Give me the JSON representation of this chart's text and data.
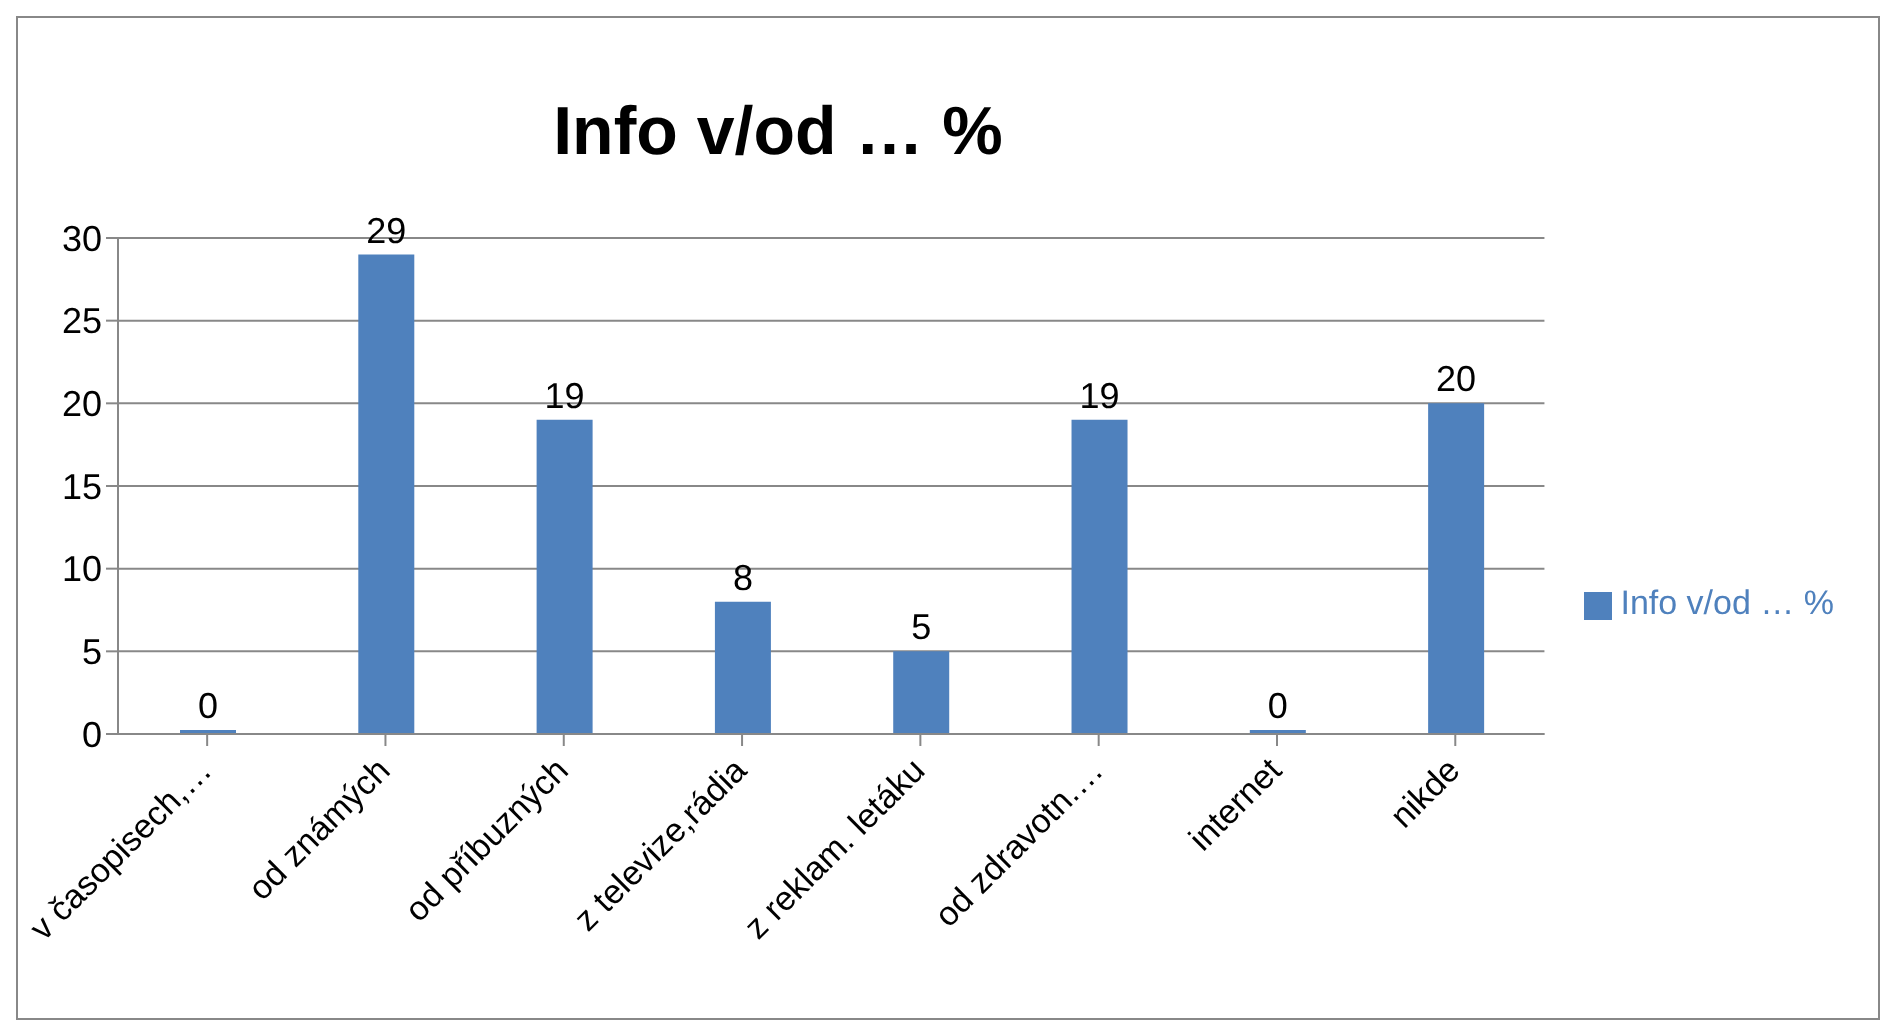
{
  "chart_data": {
    "type": "bar",
    "title": "Info v/od … %",
    "categories": [
      "v časopisech,…",
      "od známých",
      "od příbuzných",
      "z televize,rádia",
      "z reklam. letáku",
      "od zdravotn.…",
      "internet",
      "nikde"
    ],
    "series": [
      {
        "name": "Info v/od … %",
        "color": "#4f81bd",
        "values": [
          0,
          29,
          19,
          8,
          5,
          19,
          0,
          20
        ]
      }
    ],
    "ylim": [
      0,
      30
    ],
    "yticks": [
      0,
      5,
      10,
      15,
      20,
      25,
      30
    ],
    "grid": "y",
    "legend": "right",
    "data_labels": true
  }
}
